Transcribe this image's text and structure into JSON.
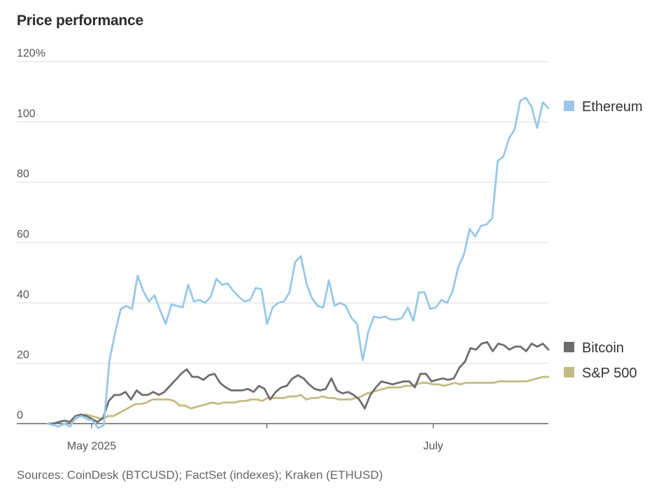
{
  "header": {
    "title": "Price performance"
  },
  "footer": {
    "source": "Sources: CoinDesk (BTCUSD); FactSet (indexes); Kraken (ETHUSD)"
  },
  "chart_data": {
    "type": "line",
    "title": "Price performance",
    "ylabel": "",
    "xlabel": "",
    "ylim": [
      0,
      120
    ],
    "y_ticks": [
      {
        "value": 0,
        "label": "0"
      },
      {
        "value": 20,
        "label": "20"
      },
      {
        "value": 40,
        "label": "40"
      },
      {
        "value": 60,
        "label": "60"
      },
      {
        "value": 80,
        "label": "80"
      },
      {
        "value": 100,
        "label": "100"
      },
      {
        "value": 120,
        "label": "120%"
      }
    ],
    "x_range": [
      0,
      100
    ],
    "x_ticks": [
      {
        "pos": 8.8,
        "label": "May 2025"
      },
      {
        "pos": 43.8,
        "label": ""
      },
      {
        "pos": 77.0,
        "label": "July"
      }
    ],
    "grid": true,
    "legend": "right",
    "series": [
      {
        "name": "Ethereum",
        "color": "#98c8e8",
        "values": [
          0,
          -0.5,
          -1,
          0,
          -1,
          2,
          2.5,
          1.5,
          1,
          -1.5,
          -0.5,
          21,
          30,
          38,
          39,
          38,
          49,
          44,
          40.5,
          42.5,
          37.5,
          33,
          39.5,
          39,
          38.5,
          46,
          40.5,
          41,
          40,
          42,
          48,
          46,
          46.5,
          44,
          42,
          40.5,
          41,
          45,
          44.5,
          33,
          38.5,
          40,
          40.5,
          43.5,
          53.5,
          55.5,
          46.5,
          41.5,
          39,
          38.5,
          47.5,
          39,
          40,
          39,
          35,
          33,
          21,
          30.5,
          35.5,
          35,
          35.5,
          34.5,
          34.5,
          35,
          38.5,
          34,
          43.5,
          43.5,
          38,
          38.5,
          41,
          40,
          44,
          52,
          56,
          64.5,
          62,
          65.5,
          66,
          68,
          87,
          88.5,
          94.5,
          97.5,
          107,
          108,
          105,
          98,
          106.5,
          104.5
        ]
      },
      {
        "name": "Bitcoin",
        "color": "#6e6e6e",
        "values": [
          0,
          0,
          0.5,
          1,
          0.5,
          2.5,
          3,
          2.5,
          1.5,
          0.5,
          2,
          7.5,
          9.5,
          9.5,
          10.5,
          8,
          11,
          9.5,
          9.5,
          10.5,
          9.5,
          10.5,
          12.5,
          14.5,
          16.5,
          18,
          15.5,
          15.5,
          14.5,
          16,
          16.5,
          13.5,
          12,
          11,
          11,
          11,
          11.5,
          10.5,
          12.5,
          11.5,
          8,
          10.5,
          12,
          12.5,
          15,
          16,
          15,
          13,
          11.5,
          11,
          11.5,
          15,
          11,
          10,
          10.5,
          9.5,
          8,
          5,
          9.5,
          12,
          14,
          13.5,
          13,
          13.5,
          14,
          14,
          12,
          16.5,
          16.5,
          14,
          14.5,
          15,
          14.5,
          15,
          18.5,
          20.5,
          25,
          24.5,
          26.5,
          27,
          24,
          26.5,
          26,
          24.5,
          25.5,
          25.5,
          24,
          26.5,
          25.5,
          26.5,
          24.5
        ]
      },
      {
        "name": "S&P 500",
        "color": "#c2bc84",
        "values": [
          0,
          0,
          0.5,
          1,
          0.5,
          1.5,
          2.5,
          3,
          2.5,
          2,
          1.5,
          2.5,
          2.5,
          3.5,
          4.5,
          5.5,
          6.5,
          6.5,
          7,
          8,
          8,
          8,
          8,
          7.5,
          6,
          6,
          5,
          5.5,
          6,
          6.5,
          7,
          6.5,
          7,
          7,
          7,
          7.5,
          7.5,
          8,
          8,
          7.5,
          8.5,
          8.5,
          8.5,
          8.5,
          9,
          9,
          9.5,
          8,
          8.5,
          8.5,
          9,
          8.5,
          8.5,
          8,
          8,
          8,
          8.5,
          9,
          10,
          10.5,
          11,
          11.5,
          12,
          12,
          12,
          12.5,
          12.5,
          13,
          13.5,
          13.5,
          13,
          13,
          12.5,
          13,
          13.5,
          13,
          13.5,
          13.5,
          13.5,
          13.5,
          13.5,
          13.5,
          14,
          14,
          14,
          14,
          14,
          14,
          14.5,
          15,
          15.5,
          15.5
        ]
      }
    ]
  }
}
